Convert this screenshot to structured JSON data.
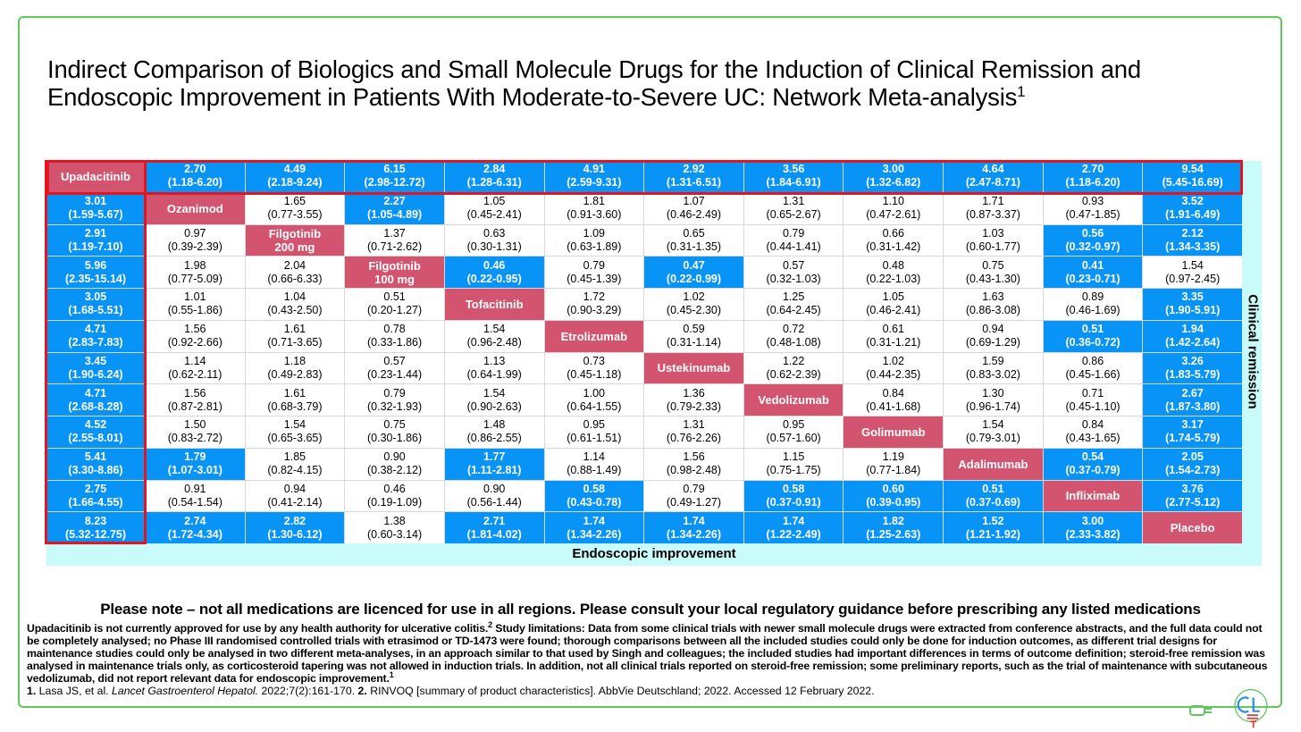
{
  "title": "Indirect Comparison of Biologics and Small Molecule Drugs for the Induction of Clinical Remission and Endoscopic Improvement in Patients With Moderate-to-Severe UC: Network Meta-analysis",
  "title_sup": "1",
  "colors": {
    "significant": "#0894f6",
    "drug": "#d3546f",
    "highlight_border": "#e4151f",
    "background": "#c9fbfb",
    "frame": "#62c65e"
  },
  "table": {
    "x_axis_label": "Endoscopic improvement",
    "y_axis_label": "Clinical remission",
    "drugs": [
      "Upadacitinib",
      "Ozanimod",
      "Filgotinib 200 mg",
      "Filgotinib 100 mg",
      "Tofacitinib",
      "Etrolizumab",
      "Ustekinumab",
      "Vedolizumab",
      "Golimumab",
      "Adalimumab",
      "Infliximab",
      "Placebo"
    ],
    "rows": [
      [
        null,
        [
          "2.70",
          "(1.18-6.20)",
          1
        ],
        [
          "4.49",
          "(2.18-9.24)",
          1
        ],
        [
          "6.15",
          "(2.98-12.72)",
          1
        ],
        [
          "2.84",
          "(1.28-6.31)",
          1
        ],
        [
          "4.91",
          "(2.59-9.31)",
          1
        ],
        [
          "2.92",
          "(1.31-6.51)",
          1
        ],
        [
          "3.56",
          "(1.84-6.91)",
          1
        ],
        [
          "3.00",
          "(1.32-6.82)",
          1
        ],
        [
          "4.64",
          "(2.47-8.71)",
          1
        ],
        [
          "2.70",
          "(1.18-6.20)",
          1
        ],
        [
          "9.54",
          "(5.45-16.69)",
          1
        ]
      ],
      [
        [
          "3.01",
          "(1.59-5.67)",
          1
        ],
        null,
        [
          "1.65",
          "(0.77-3.55)",
          0
        ],
        [
          "2.27",
          "(1.05-4.89)",
          1
        ],
        [
          "1.05",
          "(0.45-2.41)",
          0
        ],
        [
          "1.81",
          "(0.91-3.60)",
          0
        ],
        [
          "1.07",
          "(0.46-2.49)",
          0
        ],
        [
          "1.31",
          "(0.65-2.67)",
          0
        ],
        [
          "1.10",
          "(0.47-2.61)",
          0
        ],
        [
          "1.71",
          "(0.87-3.37)",
          0
        ],
        [
          "0.93",
          "(0.47-1.85)",
          0
        ],
        [
          "3.52",
          "(1.91-6.49)",
          1
        ]
      ],
      [
        [
          "2.91",
          "(1.19-7.10)",
          1
        ],
        [
          "0.97",
          "(0.39-2.39)",
          0
        ],
        null,
        [
          "1.37",
          "(0.71-2.62)",
          0
        ],
        [
          "0.63",
          "(0.30-1.31)",
          0
        ],
        [
          "1.09",
          "(0.63-1.89)",
          0
        ],
        [
          "0.65",
          "(0.31-1.35)",
          0
        ],
        [
          "0.79",
          "(0.44-1.41)",
          0
        ],
        [
          "0.66",
          "(0.31-1.42)",
          0
        ],
        [
          "1.03",
          "(0.60-1.77)",
          0
        ],
        [
          "0.56",
          "(0.32-0.97)",
          1
        ],
        [
          "2.12",
          "(1.34-3.35)",
          1
        ]
      ],
      [
        [
          "5.96",
          "(2.35-15.14)",
          1
        ],
        [
          "1.98",
          "(0.77-5.09)",
          0
        ],
        [
          "2.04",
          "(0.66-6.33)",
          0
        ],
        null,
        [
          "0.46",
          "(0.22-0.95)",
          1
        ],
        [
          "0.79",
          "(0.45-1.39)",
          0
        ],
        [
          "0.47",
          "(0.22-0.99)",
          1
        ],
        [
          "0.57",
          "(0.32-1.03)",
          0
        ],
        [
          "0.48",
          "(0.22-1.03)",
          0
        ],
        [
          "0.75",
          "(0.43-1.30)",
          0
        ],
        [
          "0.41",
          "(0.23-0.71)",
          1
        ],
        [
          "1.54",
          "(0.97-2.45)",
          0
        ]
      ],
      [
        [
          "3.05",
          "(1.68-5.51)",
          1
        ],
        [
          "1.01",
          "(0.55-1.86)",
          0
        ],
        [
          "1.04",
          "(0.43-2.50)",
          0
        ],
        [
          "0.51",
          "(0.20-1.27)",
          0
        ],
        null,
        [
          "1.72",
          "(0.90-3.29)",
          0
        ],
        [
          "1.02",
          "(0.45-2.30)",
          0
        ],
        [
          "1.25",
          "(0.64-2.45)",
          0
        ],
        [
          "1.05",
          "(0.46-2.41)",
          0
        ],
        [
          "1.63",
          "(0.86-3.08)",
          0
        ],
        [
          "0.89",
          "(0.46-1.69)",
          0
        ],
        [
          "3.35",
          "(1.90-5.91)",
          1
        ]
      ],
      [
        [
          "4.71",
          "(2.83-7.83)",
          1
        ],
        [
          "1.56",
          "(0.92-2.66)",
          0
        ],
        [
          "1.61",
          "(0.71-3.65)",
          0
        ],
        [
          "0.78",
          "(0.33-1.86)",
          0
        ],
        [
          "1.54",
          "(0.96-2.48)",
          0
        ],
        null,
        [
          "0.59",
          "(0.31-1.14)",
          0
        ],
        [
          "0.72",
          "(0.48-1.08)",
          0
        ],
        [
          "0.61",
          "(0.31-1.21)",
          0
        ],
        [
          "0.94",
          "(0.69-1.29)",
          0
        ],
        [
          "0.51",
          "(0.36-0.72)",
          1
        ],
        [
          "1.94",
          "(1.42-2.64)",
          1
        ]
      ],
      [
        [
          "3.45",
          "(1.90-6.24)",
          1
        ],
        [
          "1.14",
          "(0.62-2.11)",
          0
        ],
        [
          "1.18",
          "(0.49-2.83)",
          0
        ],
        [
          "0.57",
          "(0.23-1.44)",
          0
        ],
        [
          "1.13",
          "(0.64-1.99)",
          0
        ],
        [
          "0.73",
          "(0.45-1.18)",
          0
        ],
        null,
        [
          "1.22",
          "(0.62-2.39)",
          0
        ],
        [
          "1.02",
          "(0.44-2.35)",
          0
        ],
        [
          "1.59",
          "(0.83-3.02)",
          0
        ],
        [
          "0.86",
          "(0.45-1.66)",
          0
        ],
        [
          "3.26",
          "(1.83-5.79)",
          1
        ]
      ],
      [
        [
          "4.71",
          "(2.68-8.28)",
          1
        ],
        [
          "1.56",
          "(0.87-2.81)",
          0
        ],
        [
          "1.61",
          "(0.68-3.79)",
          0
        ],
        [
          "0.79",
          "(0.32-1.93)",
          0
        ],
        [
          "1.54",
          "(0.90-2.63)",
          0
        ],
        [
          "1.00",
          "(0.64-1.55)",
          0
        ],
        [
          "1.36",
          "(0.79-2.33)",
          0
        ],
        null,
        [
          "0.84",
          "(0.41-1.68)",
          0
        ],
        [
          "1.30",
          "(0.96-1.74)",
          0
        ],
        [
          "0.71",
          "(0.45-1.10)",
          0
        ],
        [
          "2.67",
          "(1.87-3.80)",
          1
        ]
      ],
      [
        [
          "4.52",
          "(2.55-8.01)",
          1
        ],
        [
          "1.50",
          "(0.83-2.72)",
          0
        ],
        [
          "1.54",
          "(0.65-3.65)",
          0
        ],
        [
          "0.75",
          "(0.30-1.86)",
          0
        ],
        [
          "1.48",
          "(0.86-2.55)",
          0
        ],
        [
          "0.95",
          "(0.61-1.51)",
          0
        ],
        [
          "1.31",
          "(0.76-2.26)",
          0
        ],
        [
          "0.95",
          "(0.57-1.60)",
          0
        ],
        null,
        [
          "1.54",
          "(0.79-3.01)",
          0
        ],
        [
          "0.84",
          "(0.43-1.65)",
          0
        ],
        [
          "3.17",
          "(1.74-5.79)",
          1
        ]
      ],
      [
        [
          "5.41",
          "(3.30-8.86)",
          1
        ],
        [
          "1.79",
          "(1.07-3.01)",
          1
        ],
        [
          "1.85",
          "(0.82-4.15)",
          0
        ],
        [
          "0.90",
          "(0.38-2.12)",
          0
        ],
        [
          "1.77",
          "(1.11-2.81)",
          1
        ],
        [
          "1.14",
          "(0.88-1.49)",
          0
        ],
        [
          "1.56",
          "(0.98-2.48)",
          0
        ],
        [
          "1.15",
          "(0.75-1.75)",
          0
        ],
        [
          "1.19",
          "(0.77-1.84)",
          0
        ],
        null,
        [
          "0.54",
          "(0.37-0.79)",
          1
        ],
        [
          "2.05",
          "(1.54-2.73)",
          1
        ]
      ],
      [
        [
          "2.75",
          "(1.66-4.55)",
          1
        ],
        [
          "0.91",
          "(0.54-1.54)",
          0
        ],
        [
          "0.94",
          "(0.41-2.14)",
          0
        ],
        [
          "0.46",
          "(0.19-1.09)",
          0
        ],
        [
          "0.90",
          "(0.56-1.44)",
          0
        ],
        [
          "0.58",
          "(0.43-0.78)",
          1
        ],
        [
          "0.79",
          "(0.49-1.27)",
          0
        ],
        [
          "0.58",
          "(0.37-0.91)",
          1
        ],
        [
          "0.60",
          "(0.39-0.95)",
          1
        ],
        [
          "0.51",
          "(0.37-0.69)",
          1
        ],
        null,
        [
          "3.76",
          "(2.77-5.12)",
          1
        ]
      ],
      [
        [
          "8.23",
          "(5.32-12.75)",
          1
        ],
        [
          "2.74",
          "(1.72-4.34)",
          1
        ],
        [
          "2.82",
          "(1.30-6.12)",
          1
        ],
        [
          "1.38",
          "(0.60-3.14)",
          0
        ],
        [
          "2.71",
          "(1.81-4.02)",
          1
        ],
        [
          "1.74",
          "(1.34-2.26)",
          1
        ],
        [
          "1.74",
          "(1.34-2.26)",
          1
        ],
        [
          "1.74",
          "(1.22-2.49)",
          1
        ],
        [
          "1.82",
          "(1.25-2.63)",
          1
        ],
        [
          "1.52",
          "(1.21-1.92)",
          1
        ],
        [
          "3.00",
          "(2.33-3.82)",
          1
        ],
        null
      ]
    ]
  },
  "note": "Please note – not all medications are licenced for use in all regions. Please consult your local regulatory guidance before prescribing any listed medications",
  "footnote": {
    "p1": "Upadacitinib is not currently approved for use by any health authority for ulcerative colitis.",
    "p1_sup": "2",
    "p2": " Study limitations: Data from some clinical trials with newer small molecule drugs were extracted from conference abstracts, and the full data could not be completely analysed; no Phase III randomised controlled trials with etrasimod or TD-1473 were found; thorough comparisons between all the included studies could only be done for induction outcomes, as different trial designs for maintenance studies could only be analysed in two different meta-analyses, in an approach similar to that used by Singh and colleagues; the included studies had important differences in terms of outcome definition; steroid-free remission was analysed in maintenance trials only, as corticosteroid tapering was not allowed in induction trials. In addition, not all clinical trials reported on steroid-free remission; some preliminary reports, such as the trial of maintenance with subcutaneous vedolizumab, did not report relevant data for endoscopic improvement.",
    "p2_sup": "1"
  },
  "references": {
    "r1_num": "1.",
    "r1_a": " Lasa JS, et al. ",
    "r1_journal": "Lancet Gastroenterol Hepatol.",
    "r1_b": " 2022;7(2):161-170. ",
    "r2_num": "2.",
    "r2_a": " RINVOQ [summary of product characteristics]. AbbVie Deutschland; 2022. Accessed 12 February 2022."
  },
  "logo": {
    "text": "CL",
    "icon": "cl-logo"
  }
}
